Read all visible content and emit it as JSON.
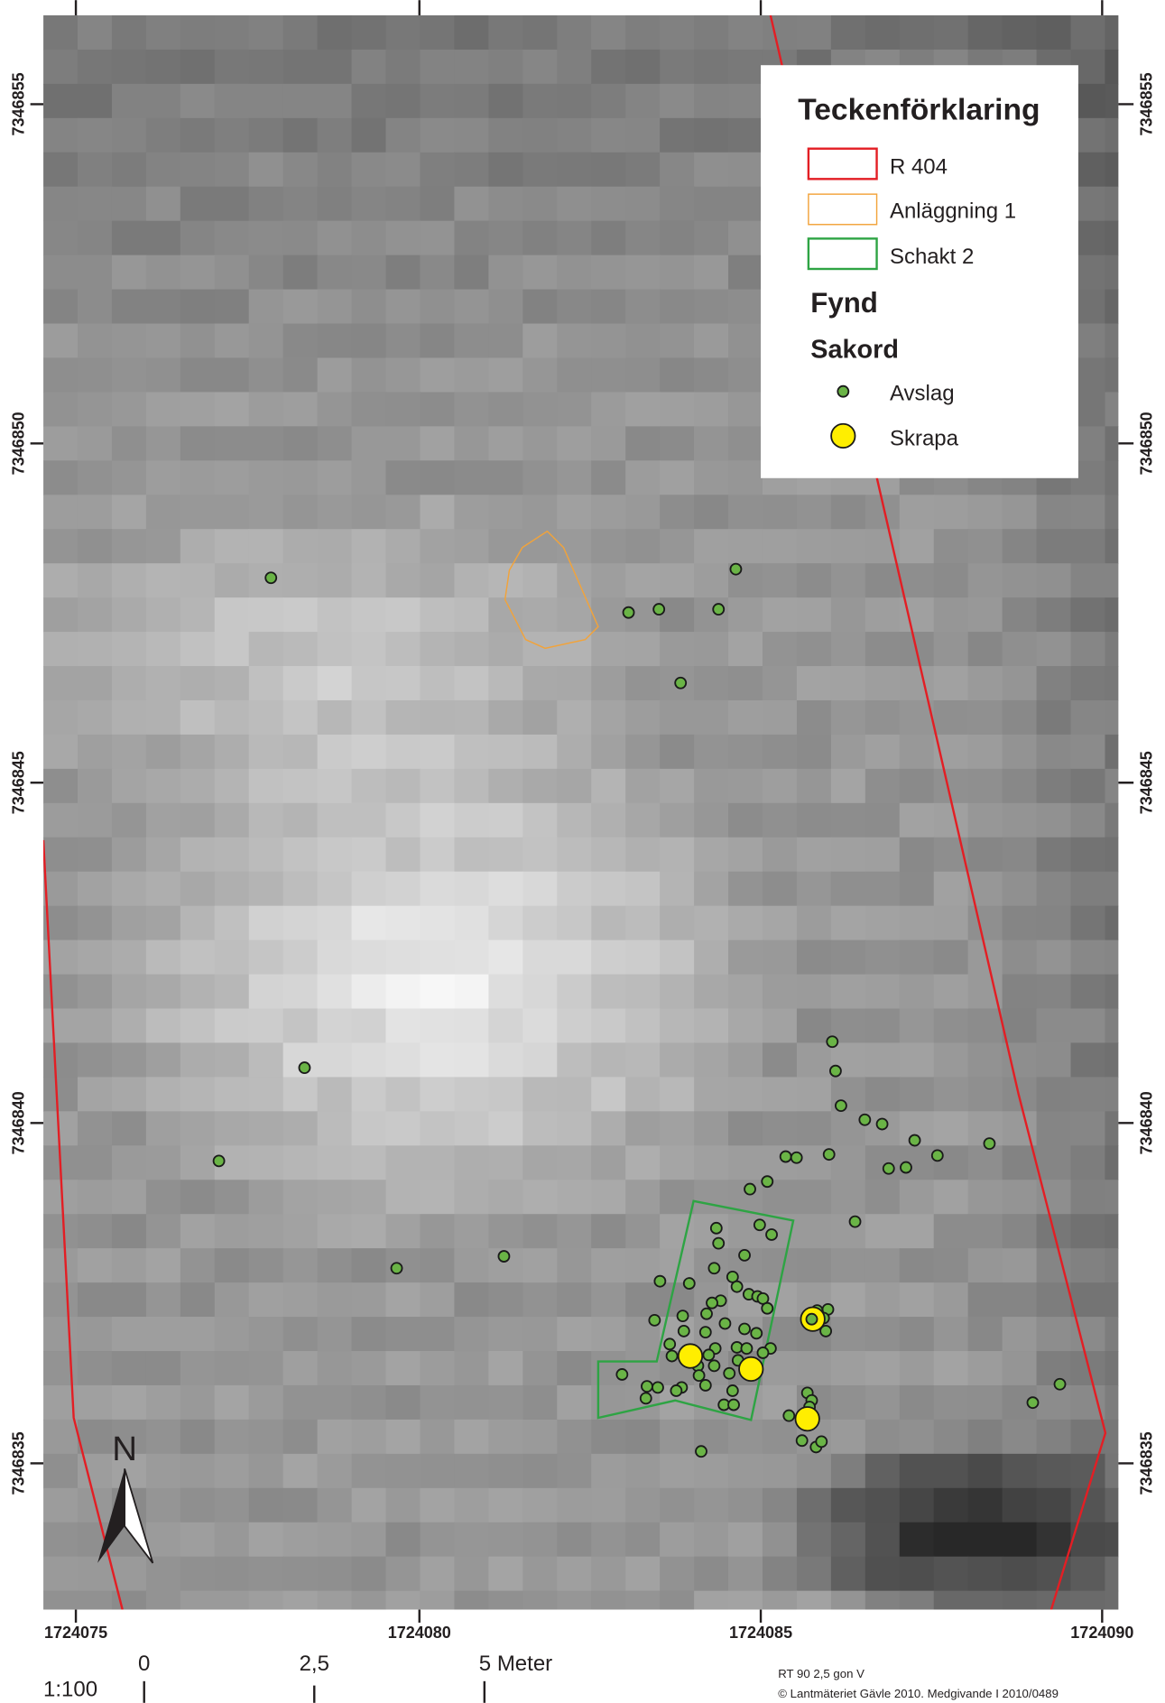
{
  "map": {
    "x_labels": [
      1724075,
      1724080,
      1724085,
      1724090
    ],
    "y_labels": [
      7346855,
      7346850,
      7346845,
      7346840,
      7346835
    ],
    "legend": {
      "title": "Teckenförklaring",
      "lines": [
        "R 404",
        "Anläggning 1",
        "Schakt 2"
      ],
      "heading": "Fynd",
      "subheading": "Sakord",
      "symbols": [
        "Avslag",
        "Skrapa"
      ]
    },
    "north": "N",
    "scale": {
      "ratio": "1:100",
      "labels": [
        "0",
        "2,5",
        "5 Meter"
      ]
    },
    "credits": [
      "RT 90 2,5 gon V",
      "© Lantmäteriet Gävle 2010. Medgivande I 2010/0489"
    ]
  }
}
